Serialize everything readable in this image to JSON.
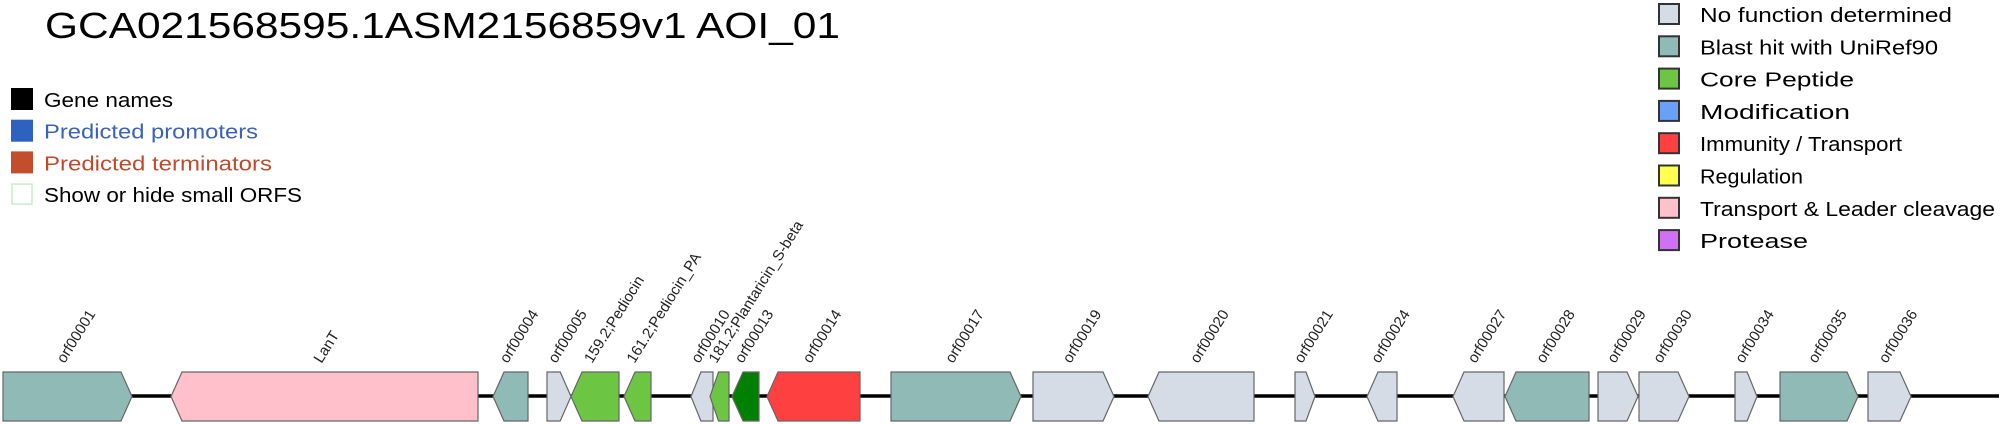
{
  "title": "GCA021568595.1ASM2156859v1 AOI_01",
  "toggles": [
    {
      "label": "Gene names",
      "color": "#000000",
      "text_color": "#000000",
      "filled": true
    },
    {
      "label": "Predicted promoters",
      "color": "#2e62c0",
      "text_color": "#3a62b8",
      "filled": true
    },
    {
      "label": "Predicted terminators",
      "color": "#c44e2b",
      "text_color": "#c04a2a",
      "filled": true
    },
    {
      "label": "Show or hide small ORFS",
      "color": "#c8ecc8",
      "text_color": "#000000",
      "filled": false
    }
  ],
  "legend": [
    {
      "key": "none",
      "label": "No function determined",
      "color": "#d6dce6"
    },
    {
      "key": "blast",
      "label": "Blast hit with UniRef90",
      "color": "#8fbab5"
    },
    {
      "key": "core",
      "label": "Core Peptide",
      "color": "#6cc644"
    },
    {
      "key": "modification",
      "label": "Modification",
      "color": "#6aa0f8"
    },
    {
      "key": "immunity",
      "label": "Immunity / Transport",
      "color": "#ff4040"
    },
    {
      "key": "regulation",
      "label": "Regulation",
      "color": "#ffff50"
    },
    {
      "key": "transport",
      "label": "Transport & Leader cleavage",
      "color": "#ffc0cb"
    },
    {
      "key": "protease",
      "label": "Protease",
      "color": "#d070f5"
    }
  ],
  "extra_colors": {
    "core_dark": "#008000"
  },
  "genes": [
    {
      "name": "orf00001",
      "category": "blast",
      "strand": "+"
    },
    {
      "name": "LanT",
      "category": "transport",
      "strand": "-"
    },
    {
      "name": "orf00004",
      "category": "blast",
      "strand": "-"
    },
    {
      "name": "orf00005",
      "category": "none",
      "strand": "+"
    },
    {
      "name": "159.2;Pediocin",
      "category": "core",
      "strand": "-"
    },
    {
      "name": "161.2;Pediocin_PA",
      "category": "core",
      "strand": "-"
    },
    {
      "name": "orf00010",
      "category": "none",
      "strand": "-"
    },
    {
      "name": "181.2;Plantaricin_S-beta",
      "category": "core",
      "strand": "-"
    },
    {
      "name": "orf00013",
      "category": "core_dark",
      "strand": "-"
    },
    {
      "name": "orf00014",
      "category": "immunity",
      "strand": "-"
    },
    {
      "name": "orf00017",
      "category": "blast",
      "strand": "+"
    },
    {
      "name": "orf00019",
      "category": "none",
      "strand": "+"
    },
    {
      "name": "orf00020",
      "category": "none",
      "strand": "-"
    },
    {
      "name": "orf00021",
      "category": "none",
      "strand": "+"
    },
    {
      "name": "orf00024",
      "category": "none",
      "strand": "-"
    },
    {
      "name": "orf00027",
      "category": "none",
      "strand": "-"
    },
    {
      "name": "orf00028",
      "category": "blast",
      "strand": "-"
    },
    {
      "name": "orf00029",
      "category": "none",
      "strand": "+"
    },
    {
      "name": "orf00030",
      "category": "none",
      "strand": "+"
    },
    {
      "name": "orf00034",
      "category": "none",
      "strand": "+"
    },
    {
      "name": "orf00035",
      "category": "blast",
      "strand": "+"
    },
    {
      "name": "orf00036",
      "category": "none",
      "strand": "+"
    }
  ]
}
